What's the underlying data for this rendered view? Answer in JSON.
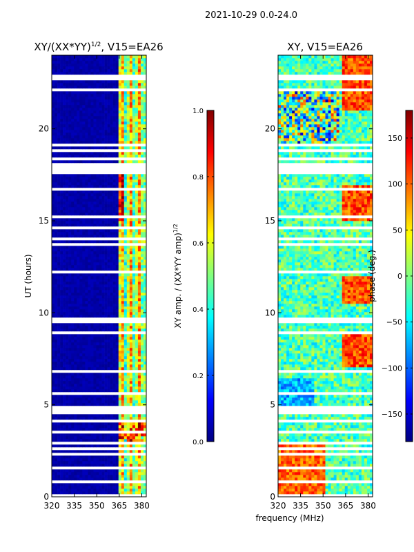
{
  "suptitle": "2021-10-29 0.0-24.0",
  "colors": {
    "jet": [
      "#000080",
      "#0000ff",
      "#0080ff",
      "#00ffff",
      "#80ff80",
      "#ffff00",
      "#ff8000",
      "#ff0000",
      "#800000"
    ],
    "gap": "#ffffff",
    "frame": "#000000"
  },
  "chart_data": [
    {
      "type": "heatmap",
      "title_main": "XY/(XX*YY)",
      "title_sup": "1/2",
      "title_rest": ", V15=EA26",
      "xlabel": "",
      "ylabel": "UT (hours)",
      "xlim": [
        320,
        383
      ],
      "ylim": [
        0,
        24
      ],
      "xticks": [
        "320",
        "335",
        "350",
        "365",
        "380"
      ],
      "yticks": [
        "0",
        "5",
        "10",
        "15",
        "20"
      ],
      "colorbar": {
        "label_main": "XY amp. / (XX*YY amp)",
        "label_sup": "1/2",
        "range": [
          0.0,
          1.0
        ],
        "ticks": [
          "0.0",
          "0.2",
          "0.4",
          "0.6",
          "0.8",
          "1.0"
        ]
      }
    },
    {
      "type": "heatmap",
      "title": "XY, V15=EA26",
      "xlabel": "frequency (MHz)",
      "ylabel": "",
      "xlim": [
        320,
        383
      ],
      "ylim": [
        0,
        24
      ],
      "xticks": [
        "320",
        "335",
        "350",
        "365",
        "380"
      ],
      "yticks": [
        "0",
        "5",
        "10",
        "15",
        "20"
      ],
      "colorbar": {
        "label": "phase (deg.)",
        "range": [
          -180,
          180
        ],
        "ticks": [
          "−150",
          "−100",
          "−50",
          "0",
          "50",
          "100",
          "150"
        ]
      }
    }
  ],
  "gaps_hours": [
    [
      0.05,
      0.1
    ],
    [
      0.3,
      0.35
    ],
    [
      0.55,
      0.6
    ],
    [
      0.8,
      0.85
    ],
    [
      1.05,
      1.1
    ],
    [
      1.3,
      1.35
    ],
    [
      1.55,
      1.6
    ],
    [
      1.8,
      1.85
    ],
    [
      2.05,
      2.1
    ],
    [
      2.3,
      2.35
    ],
    [
      2.6,
      2.65
    ],
    [
      2.9,
      2.95
    ],
    [
      3.5,
      3.55
    ],
    [
      4.1,
      4.2
    ],
    [
      4.45,
      4.95
    ],
    [
      5.6,
      5.75
    ],
    [
      6.3,
      6.35
    ],
    [
      6.8,
      6.85
    ],
    [
      7.3,
      7.35
    ],
    [
      7.8,
      7.85
    ],
    [
      8.2,
      8.25
    ],
    [
      8.5,
      8.55
    ],
    [
      8.8,
      8.95
    ],
    [
      9.25,
      9.3
    ],
    [
      9.5,
      9.75
    ],
    [
      11.5,
      11.55
    ],
    [
      12.2,
      12.25
    ],
    [
      12.7,
      12.75
    ],
    [
      13.7,
      13.8
    ],
    [
      14.0,
      14.05
    ],
    [
      14.6,
      14.65
    ],
    [
      15.2,
      15.25
    ],
    [
      16.2,
      16.25
    ],
    [
      16.7,
      16.75
    ],
    [
      17.5,
      18.1
    ],
    [
      18.35,
      18.4
    ],
    [
      18.6,
      18.65
    ],
    [
      18.8,
      18.9
    ],
    [
      19.1,
      19.2
    ],
    [
      20.7,
      20.75
    ],
    [
      22.1,
      22.15
    ],
    [
      22.7,
      22.9
    ],
    [
      23.4,
      23.45
    ]
  ]
}
